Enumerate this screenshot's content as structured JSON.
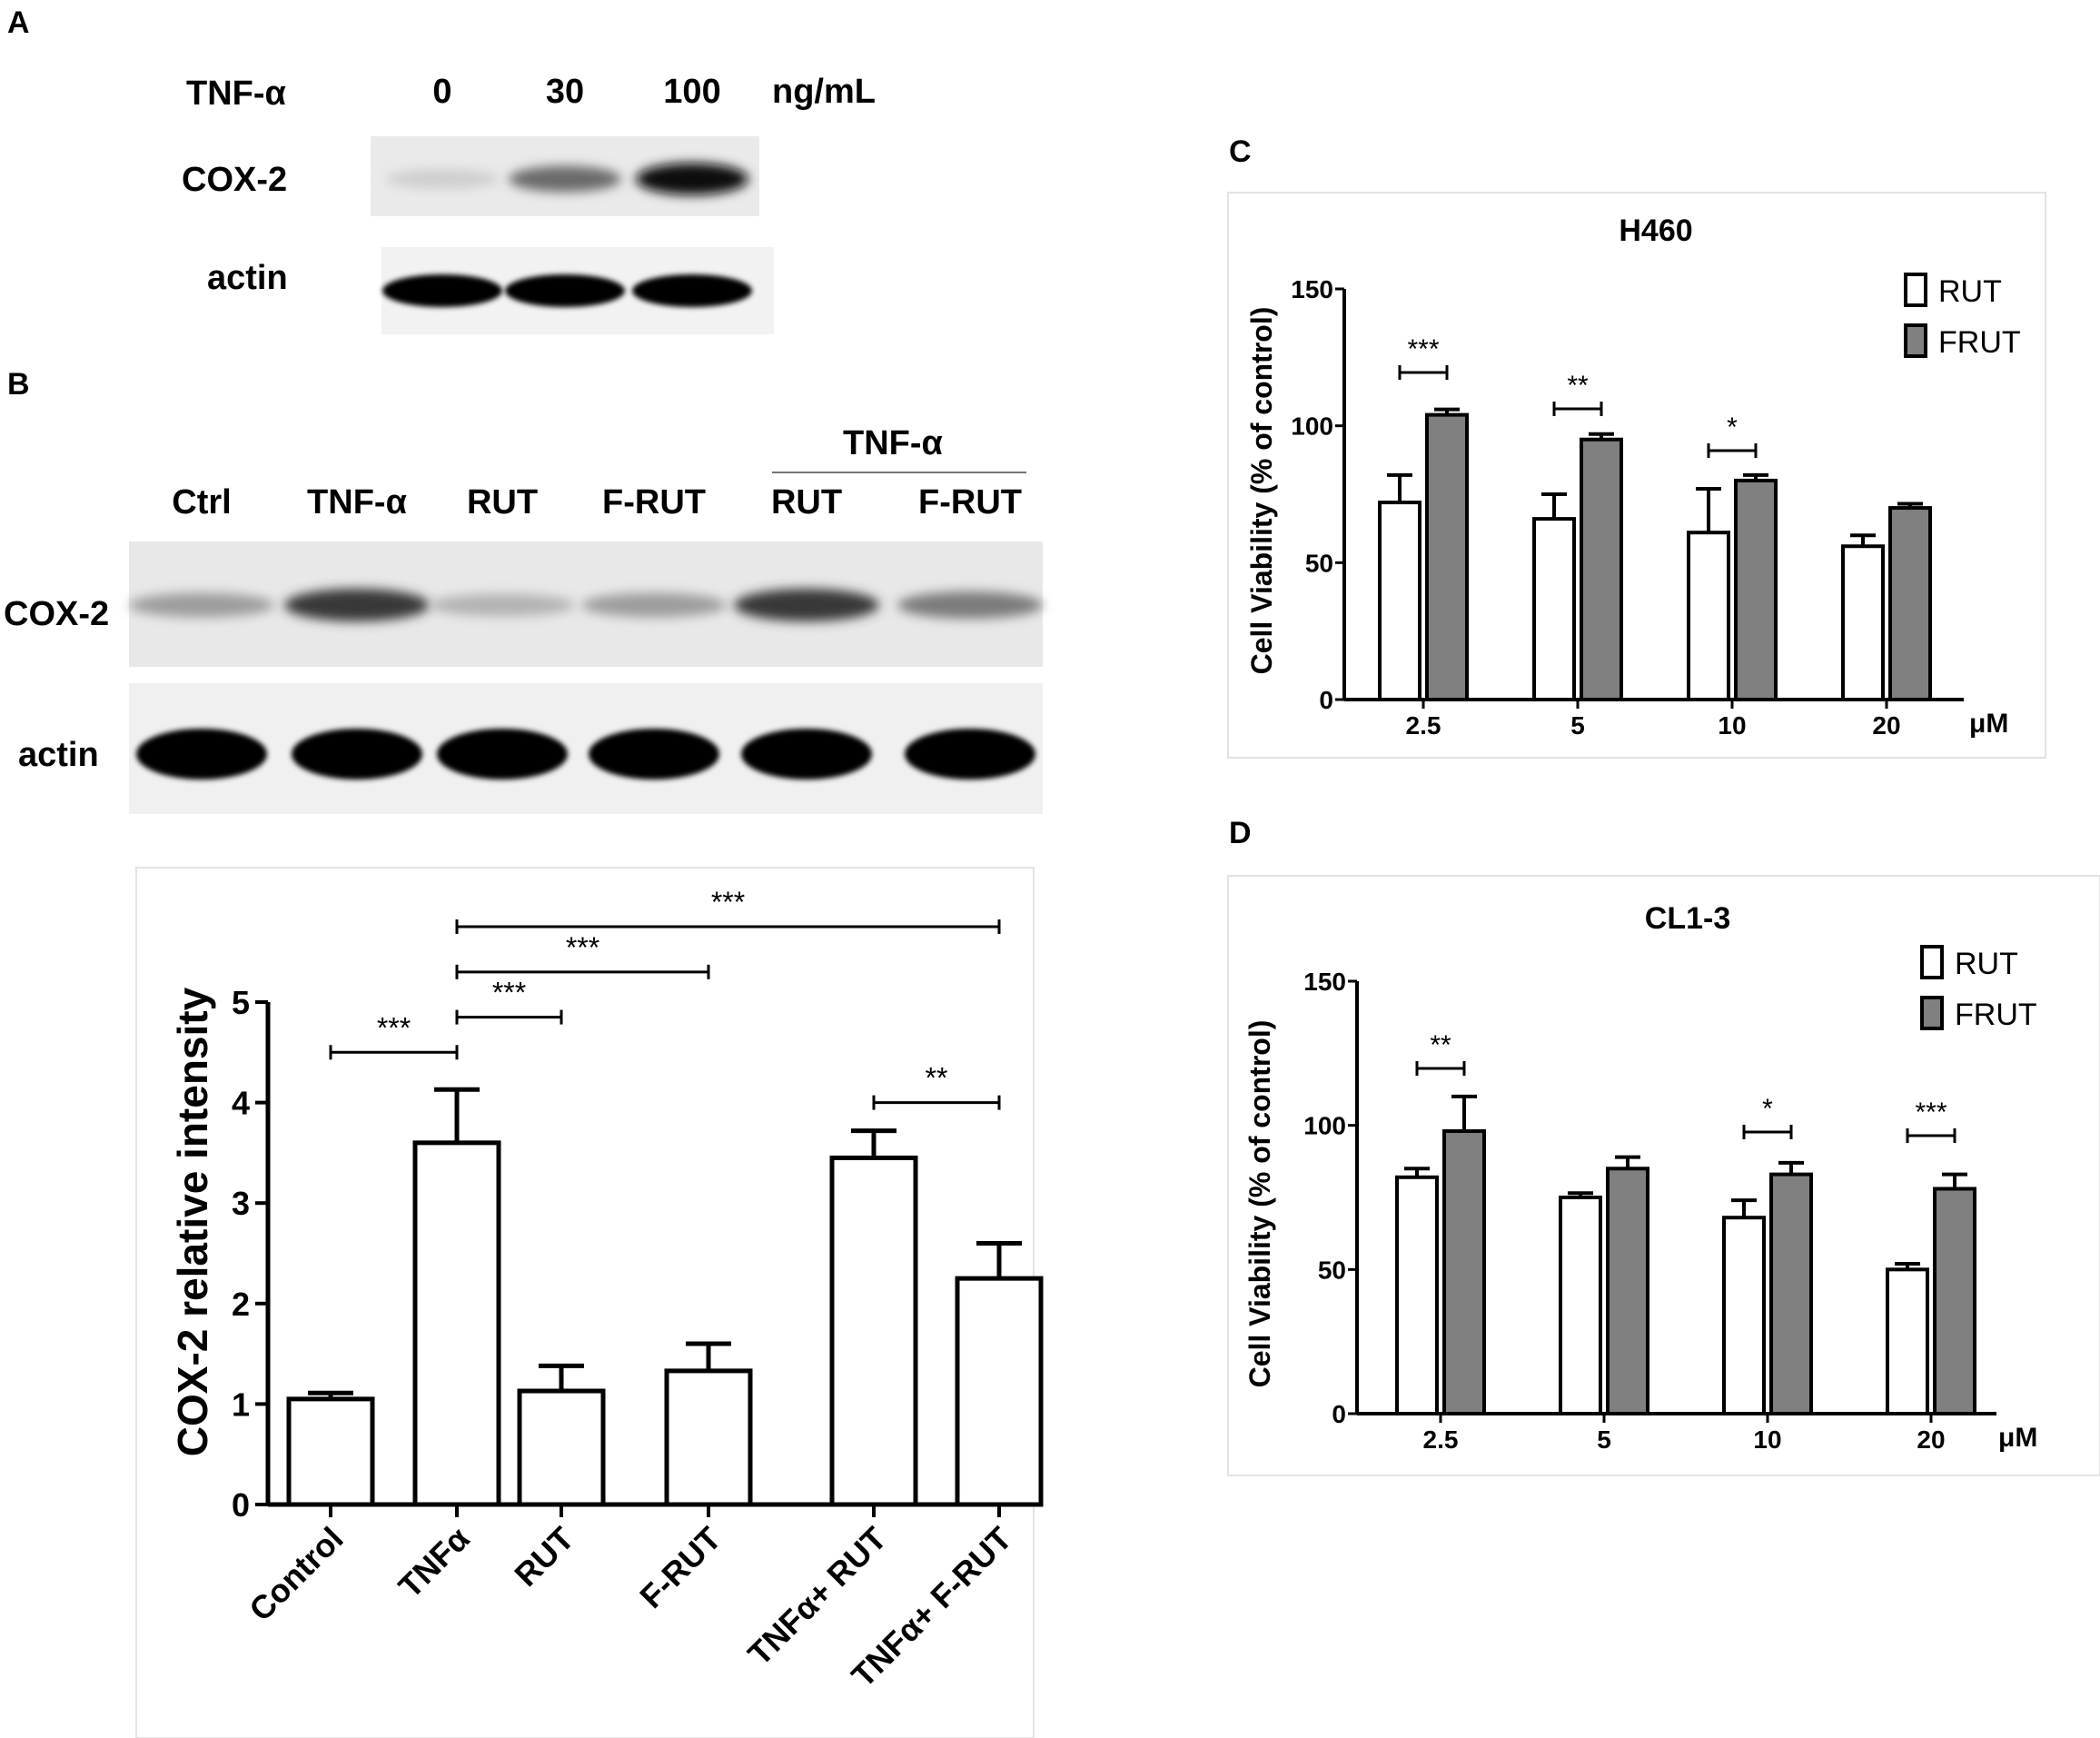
{
  "panels": {
    "A": {
      "letter": "A",
      "treatment_label": "TNF-α",
      "concentrations": [
        "0",
        "30",
        "100"
      ],
      "unit": "ng/mL",
      "rows": [
        "COX-2",
        "actin"
      ],
      "cox2_band_intensity": [
        0.12,
        0.55,
        0.95
      ],
      "actin_band_intensity": [
        1.0,
        1.0,
        1.0
      ]
    },
    "B": {
      "letter": "B",
      "group_label": "TNF-α",
      "lanes": [
        "Ctrl",
        "TNF-α",
        "RUT",
        "F-RUT",
        "RUT",
        "F-RUT"
      ],
      "rows": [
        "COX-2",
        "actin"
      ],
      "cox2_band_intensity": [
        0.35,
        0.8,
        0.25,
        0.35,
        0.8,
        0.5
      ],
      "actin_band_intensity": [
        1.0,
        1.0,
        1.0,
        1.0,
        1.0,
        1.0
      ]
    },
    "C": {
      "letter": "C"
    },
    "D": {
      "letter": "D"
    }
  },
  "chart_data": [
    {
      "id": "B-chart",
      "type": "bar",
      "title": "",
      "xlabel": "",
      "ylabel": "COX-2 relative intensity",
      "ylim": [
        0,
        5
      ],
      "yticks": [
        "0",
        "1",
        "2",
        "3",
        "4",
        "5"
      ],
      "categories": [
        "Control",
        "TNFα",
        "RUT",
        "F-RUT",
        "TNFα+ RUT",
        "TNFα+ F-RUT"
      ],
      "values": [
        1.05,
        3.6,
        1.13,
        1.33,
        3.45,
        2.25
      ],
      "errors": [
        0.06,
        0.53,
        0.25,
        0.27,
        0.27,
        0.35
      ],
      "significance": [
        {
          "from": 0,
          "to": 1,
          "y": 4.5,
          "label": "***"
        },
        {
          "from": 1,
          "to": 2,
          "y": 4.85,
          "label": "***"
        },
        {
          "from": 1,
          "to": 3,
          "y": 5.3,
          "label": "***"
        },
        {
          "from": 1,
          "to": 5,
          "y": 5.75,
          "label": "***"
        },
        {
          "from": 4,
          "to": 5,
          "y": 4.0,
          "label": "**"
        }
      ]
    },
    {
      "id": "C-chart",
      "type": "bar",
      "title": "H460",
      "ylabel": "Cell Viability  (% of control)",
      "x_unit": "μM",
      "ylim": [
        0,
        150
      ],
      "yticks": [
        "0",
        "50",
        "100",
        "150"
      ],
      "categories": [
        "2.5",
        "5",
        "10",
        "20"
      ],
      "series": [
        {
          "name": "RUT",
          "color": "#ffffff",
          "values": [
            72,
            66,
            61,
            56
          ],
          "errors": [
            10,
            9,
            16,
            4
          ]
        },
        {
          "name": "FRUT",
          "color": "#808080",
          "values": [
            104,
            95,
            80,
            70
          ],
          "errors": [
            2,
            2,
            2,
            1.5
          ]
        }
      ],
      "significance": [
        {
          "category": 0,
          "label": "***"
        },
        {
          "category": 1,
          "label": "**"
        },
        {
          "category": 2,
          "label": "*"
        }
      ]
    },
    {
      "id": "D-chart",
      "type": "bar",
      "title": "CL1-3",
      "ylabel": "Cell Viability  (% of control)",
      "x_unit": "μM",
      "ylim": [
        0,
        150
      ],
      "yticks": [
        "0",
        "50",
        "100",
        "150"
      ],
      "categories": [
        "2.5",
        "5",
        "10",
        "20"
      ],
      "series": [
        {
          "name": "RUT",
          "color": "#ffffff",
          "values": [
            82,
            75,
            68,
            50
          ],
          "errors": [
            3,
            1.5,
            6,
            2
          ]
        },
        {
          "name": "FRUT",
          "color": "#808080",
          "values": [
            98,
            85,
            83,
            78
          ],
          "errors": [
            12,
            4,
            4,
            5
          ]
        }
      ],
      "significance": [
        {
          "category": 0,
          "label": "**"
        },
        {
          "category": 2,
          "label": "*"
        },
        {
          "category": 3,
          "label": "***"
        }
      ]
    }
  ]
}
